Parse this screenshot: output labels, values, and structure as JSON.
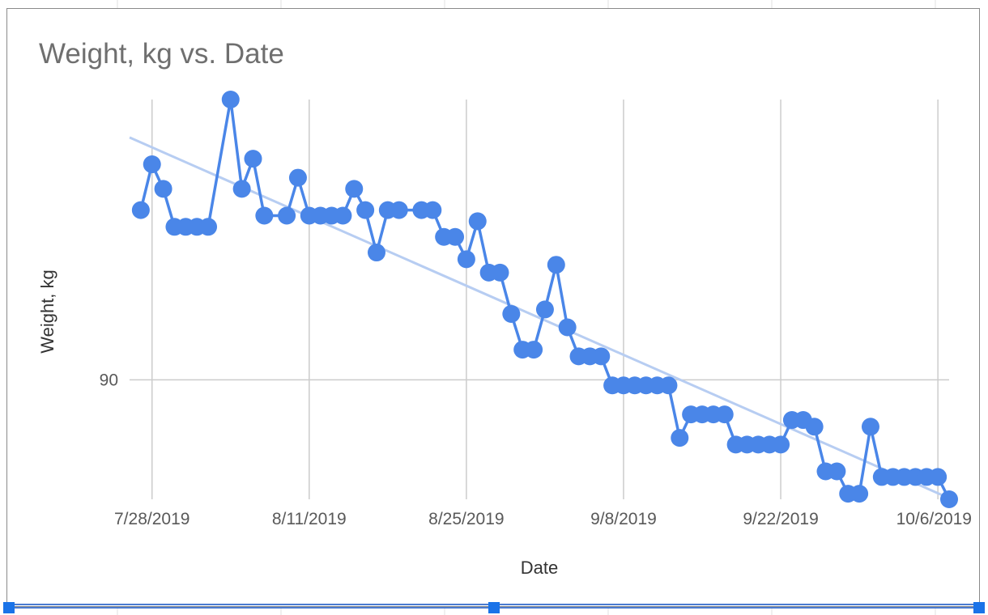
{
  "chart_data": {
    "type": "scatter",
    "title": "Weight, kg vs. Date",
    "xlabel": "Date",
    "ylabel": "Weight, kg",
    "x_tick_labels": [
      "7/28/2019",
      "8/11/2019",
      "8/25/2019",
      "9/8/2019",
      "9/22/2019",
      "10/6/2019"
    ],
    "y_tick_labels": [
      "90"
    ],
    "grid": true,
    "legend": "none",
    "trendline": {
      "type": "linear",
      "start": [
        "2019-07-26",
        92.17
      ],
      "end": [
        "2019-10-07",
        88.94
      ]
    },
    "series": [
      {
        "points": [
          [
            "2019-07-27",
            91.52
          ],
          [
            "2019-07-28",
            91.93
          ],
          [
            "2019-07-29",
            91.71
          ],
          [
            "2019-07-30",
            91.37
          ],
          [
            "2019-07-31",
            91.37
          ],
          [
            "2019-08-01",
            91.37
          ],
          [
            "2019-08-02",
            91.37
          ],
          [
            "2019-08-04",
            92.51
          ],
          [
            "2019-08-05",
            91.71
          ],
          [
            "2019-08-06",
            91.98
          ],
          [
            "2019-08-07",
            91.47
          ],
          [
            "2019-08-09",
            91.47
          ],
          [
            "2019-08-10",
            91.81
          ],
          [
            "2019-08-11",
            91.47
          ],
          [
            "2019-08-12",
            91.47
          ],
          [
            "2019-08-13",
            91.47
          ],
          [
            "2019-08-14",
            91.47
          ],
          [
            "2019-08-15",
            91.71
          ],
          [
            "2019-08-16",
            91.52
          ],
          [
            "2019-08-17",
            91.14
          ],
          [
            "2019-08-18",
            91.52
          ],
          [
            "2019-08-19",
            91.52
          ],
          [
            "2019-08-21",
            91.52
          ],
          [
            "2019-08-22",
            91.52
          ],
          [
            "2019-08-23",
            91.28
          ],
          [
            "2019-08-24",
            91.28
          ],
          [
            "2019-08-25",
            91.08
          ],
          [
            "2019-08-26",
            91.42
          ],
          [
            "2019-08-27",
            90.96
          ],
          [
            "2019-08-28",
            90.96
          ],
          [
            "2019-08-29",
            90.59
          ],
          [
            "2019-08-30",
            90.27
          ],
          [
            "2019-08-31",
            90.27
          ],
          [
            "2019-09-01",
            90.63
          ],
          [
            "2019-09-02",
            91.03
          ],
          [
            "2019-09-03",
            90.47
          ],
          [
            "2019-09-04",
            90.21
          ],
          [
            "2019-09-05",
            90.21
          ],
          [
            "2019-09-06",
            90.21
          ],
          [
            "2019-09-07",
            89.95
          ],
          [
            "2019-09-08",
            89.95
          ],
          [
            "2019-09-09",
            89.95
          ],
          [
            "2019-09-10",
            89.95
          ],
          [
            "2019-09-11",
            89.95
          ],
          [
            "2019-09-12",
            89.95
          ],
          [
            "2019-09-13",
            89.48
          ],
          [
            "2019-09-14",
            89.69
          ],
          [
            "2019-09-15",
            89.69
          ],
          [
            "2019-09-16",
            89.69
          ],
          [
            "2019-09-17",
            89.69
          ],
          [
            "2019-09-18",
            89.42
          ],
          [
            "2019-09-19",
            89.42
          ],
          [
            "2019-09-20",
            89.42
          ],
          [
            "2019-09-21",
            89.42
          ],
          [
            "2019-09-22",
            89.42
          ],
          [
            "2019-09-23",
            89.64
          ],
          [
            "2019-09-24",
            89.64
          ],
          [
            "2019-09-25",
            89.58
          ],
          [
            "2019-09-26",
            89.18
          ],
          [
            "2019-09-27",
            89.18
          ],
          [
            "2019-09-28",
            88.98
          ],
          [
            "2019-09-29",
            88.98
          ],
          [
            "2019-09-30",
            89.58
          ],
          [
            "2019-10-01",
            89.13
          ],
          [
            "2019-10-02",
            89.13
          ],
          [
            "2019-10-03",
            89.13
          ],
          [
            "2019-10-04",
            89.13
          ],
          [
            "2019-10-05",
            89.13
          ],
          [
            "2019-10-06",
            89.13
          ],
          [
            "2019-10-07",
            88.93
          ]
        ]
      }
    ]
  },
  "colors": {
    "series": "#4a86e8",
    "trendline": "#b7cdf2",
    "grid": "#cccccc",
    "frame": "#8a8a8a",
    "selection": "#1a73e8"
  }
}
